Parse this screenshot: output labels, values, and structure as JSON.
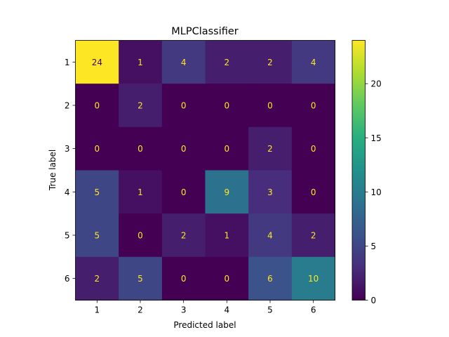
{
  "chart_data": {
    "type": "heatmap",
    "title": "MLPClassifier",
    "xlabel": "Predicted label",
    "ylabel": "True label",
    "x_categories": [
      "1",
      "2",
      "3",
      "4",
      "5",
      "6"
    ],
    "y_categories": [
      "1",
      "2",
      "3",
      "4",
      "5",
      "6"
    ],
    "matrix": [
      [
        24,
        1,
        4,
        2,
        2,
        4
      ],
      [
        0,
        2,
        0,
        0,
        0,
        0
      ],
      [
        0,
        0,
        0,
        0,
        2,
        0
      ],
      [
        5,
        1,
        0,
        9,
        3,
        0
      ],
      [
        5,
        0,
        2,
        1,
        4,
        2
      ],
      [
        2,
        5,
        0,
        0,
        6,
        10
      ]
    ],
    "colormap": "viridis",
    "colorbar": {
      "min": 0,
      "max": 24,
      "ticks": [
        0,
        5,
        10,
        15,
        20
      ]
    },
    "text_colors": {
      "light": "#fde725",
      "dark": "#440154"
    }
  }
}
